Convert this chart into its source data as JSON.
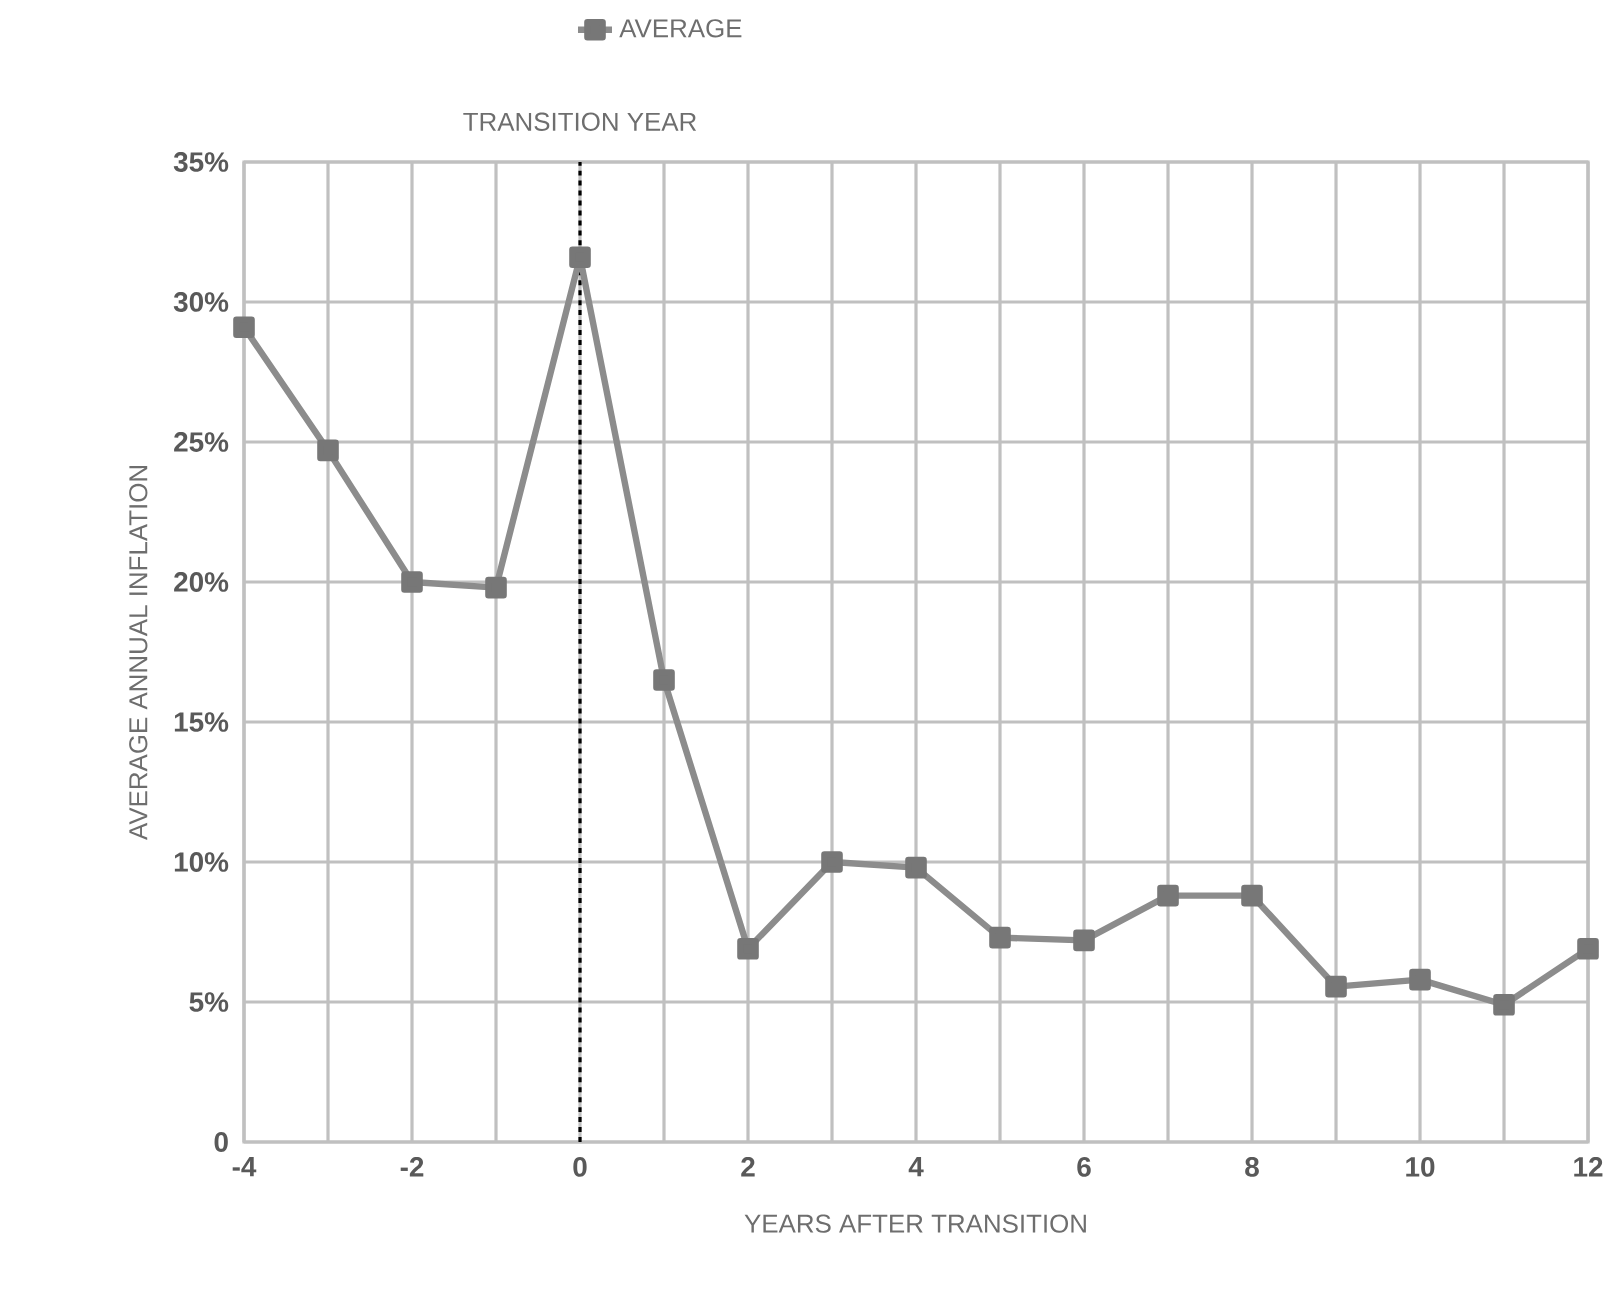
{
  "chart_data": {
    "type": "line",
    "xlabel": "YEARS AFTER TRANSITION",
    "ylabel": "AVERAGE ANNUAL INFLATION",
    "x": [
      -4,
      -3,
      -2,
      -1,
      0,
      1,
      2,
      3,
      4,
      5,
      6,
      7,
      8,
      9,
      10,
      11,
      12
    ],
    "series": [
      {
        "name": "AVERAGE",
        "color": "#8c8c8c",
        "values": [
          29.1,
          24.7,
          20.0,
          19.8,
          31.6,
          16.5,
          6.9,
          10.0,
          9.8,
          7.3,
          7.2,
          8.8,
          8.8,
          5.55,
          5.8,
          4.9,
          6.9
        ]
      }
    ],
    "xlim": [
      -4,
      12
    ],
    "xticks": [
      -4,
      {
        "value": -3,
        "label": null
      },
      -2,
      {
        "value": -1,
        "label": null
      },
      0,
      {
        "value": 1,
        "label": null
      },
      2,
      {
        "value": 3,
        "label": null
      },
      4,
      {
        "value": 5,
        "label": null
      },
      6,
      {
        "value": 7,
        "label": null
      },
      8,
      {
        "value": 9,
        "label": null
      },
      10,
      {
        "value": 11,
        "label": null
      },
      12
    ],
    "ylim": [
      0,
      35
    ],
    "yticks": [
      0,
      {
        "value": 5,
        "label": "5%"
      },
      {
        "value": 10,
        "label": "10%"
      },
      {
        "value": 15,
        "label": "15%"
      },
      {
        "value": 20,
        "label": "20%"
      },
      {
        "value": 25,
        "label": "25%"
      },
      {
        "value": 30,
        "label": "30%"
      },
      {
        "value": 35,
        "label": "35%"
      }
    ],
    "ref_lines": [
      {
        "axis": "x",
        "value": 0,
        "label": "TRANSITION YEAR",
        "color": "#000000",
        "line_style": "dotted"
      }
    ],
    "grid": true,
    "legend": "top",
    "marker": "square",
    "line_style": "solid"
  }
}
